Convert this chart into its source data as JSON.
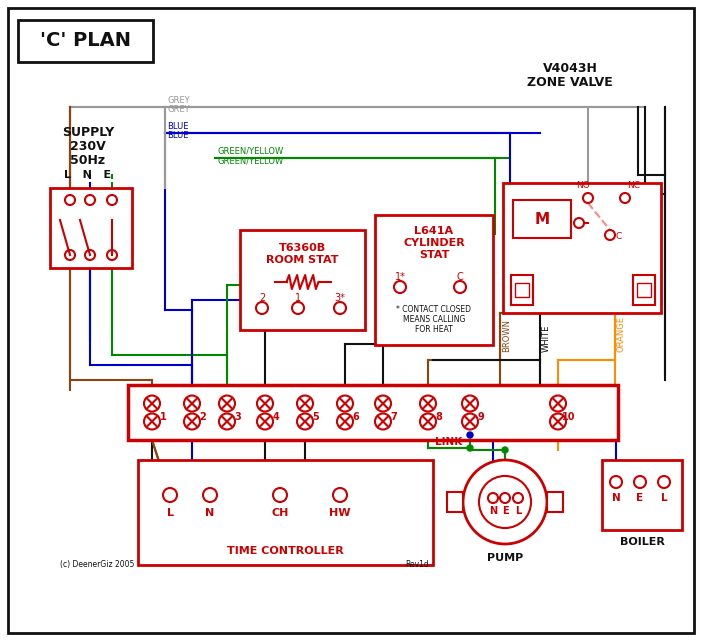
{
  "title": "'C' PLAN",
  "bg_color": "#ffffff",
  "red": "#cc0000",
  "blue": "#0000cc",
  "green": "#008800",
  "brown": "#8B4513",
  "grey": "#999999",
  "orange": "#FF8C00",
  "black": "#111111",
  "pink_dashed": "#ff8888",
  "supply_text_lines": [
    "SUPPLY",
    "230V",
    "50Hz"
  ],
  "zone_valve_title_lines": [
    "V4043H",
    "ZONE VALVE"
  ],
  "room_stat_title_lines": [
    "T6360B",
    "ROOM STAT"
  ],
  "cyl_stat_title_lines": [
    "L641A",
    "CYLINDER",
    "STAT"
  ],
  "time_ctrl_title": "TIME CONTROLLER",
  "pump_title": "PUMP",
  "boiler_title": "BOILER",
  "link_label": "LINK",
  "terminal_labels": [
    "1",
    "2",
    "3",
    "4",
    "5",
    "6",
    "7",
    "8",
    "9",
    "10"
  ],
  "tc_terminals": [
    "L",
    "N",
    "CH",
    "HW"
  ],
  "contact_note_lines": [
    "* CONTACT CLOSED",
    "MEANS CALLING",
    "FOR HEAT"
  ],
  "rev": "Rev1d",
  "copyright": "(c) DeenerGiz 2005"
}
